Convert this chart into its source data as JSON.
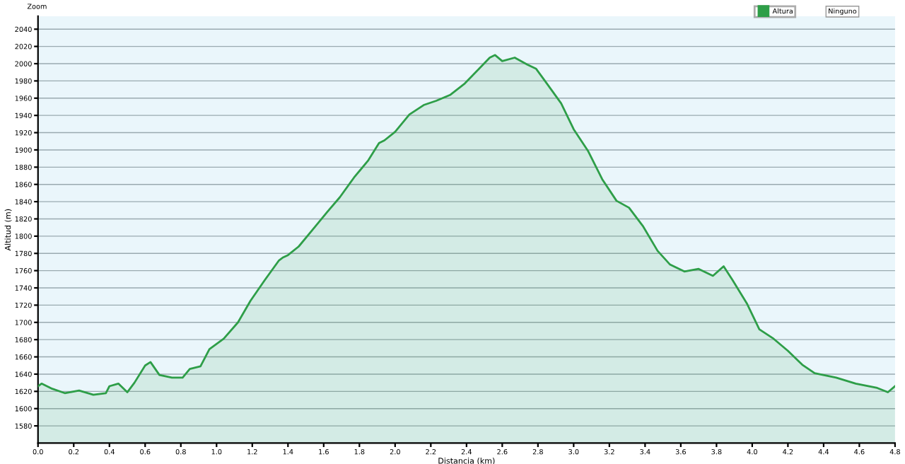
{
  "chart_data": {
    "type": "area",
    "xlabel": "Distancia (km)",
    "ylabel": "Altitud (m)",
    "annotations": [
      "Zoom",
      "Ninguno"
    ],
    "x": [
      0,
      0.02,
      0.08,
      0.15,
      0.23,
      0.31,
      0.38,
      0.4,
      0.45,
      0.5,
      0.54,
      0.6,
      0.63,
      0.68,
      0.75,
      0.81,
      0.85,
      0.91,
      0.96,
      1.04,
      1.12,
      1.19,
      1.27,
      1.35,
      1.37,
      1.4,
      1.46,
      1.54,
      1.62,
      1.69,
      1.77,
      1.85,
      1.91,
      1.94,
      2.0,
      2.08,
      2.16,
      2.23,
      2.31,
      2.39,
      2.47,
      2.53,
      2.56,
      2.6,
      2.67,
      2.74,
      2.79,
      2.85,
      2.93,
      3.0,
      3.08,
      3.16,
      3.24,
      3.31,
      3.39,
      3.47,
      3.54,
      3.62,
      3.7,
      3.78,
      3.84,
      3.89,
      3.97,
      4.04,
      4.12,
      4.2,
      4.28,
      4.35,
      4.47,
      4.58,
      4.7,
      4.76,
      4.8
    ],
    "series": [
      {
        "name": "Altura",
        "color": "#2e9e48",
        "values": [
          1626,
          1629,
          1623,
          1618,
          1621,
          1616,
          1618,
          1626,
          1629,
          1619,
          1630,
          1650,
          1654,
          1639,
          1636,
          1636,
          1646,
          1649,
          1669,
          1681,
          1700,
          1725,
          1749,
          1772,
          1775,
          1778,
          1788,
          1808,
          1828,
          1845,
          1868,
          1888,
          1908,
          1911,
          1921,
          1941,
          1952,
          1957,
          1964,
          1977,
          1994,
          2007,
          2010,
          2003,
          2007,
          1999,
          1994,
          1977,
          1954,
          1924,
          1899,
          1866,
          1841,
          1833,
          1811,
          1783,
          1767,
          1759,
          1762,
          1754,
          1765,
          1749,
          1722,
          1692,
          1681,
          1667,
          1651,
          1641,
          1636,
          1629,
          1624,
          1619,
          1626
        ]
      }
    ],
    "xlim": [
      0,
      4.8
    ],
    "ylim": [
      1560,
      2055
    ],
    "xticks": [
      {
        "value": 0,
        "label": "0.0"
      },
      0.2,
      0.4,
      0.6,
      0.8,
      {
        "value": 1,
        "label": "1.0"
      },
      1.2,
      1.4,
      1.6,
      1.8,
      {
        "value": 2,
        "label": "2.0"
      },
      2.2,
      2.4,
      2.6,
      2.8,
      {
        "value": 3,
        "label": "3.0"
      },
      3.2,
      3.4,
      3.6,
      3.8,
      {
        "value": 4,
        "label": "4.0"
      },
      4.2,
      4.4,
      4.6,
      4.8
    ],
    "yticks": [
      1580,
      1600,
      1620,
      1640,
      1660,
      1680,
      1700,
      1720,
      1740,
      1760,
      1780,
      1800,
      1820,
      1840,
      1860,
      1880,
      1900,
      1920,
      1940,
      1960,
      1980,
      2000,
      2020,
      2040
    ],
    "grid": "y",
    "legend": "top right",
    "marker": "none",
    "line_style": "solid"
  }
}
